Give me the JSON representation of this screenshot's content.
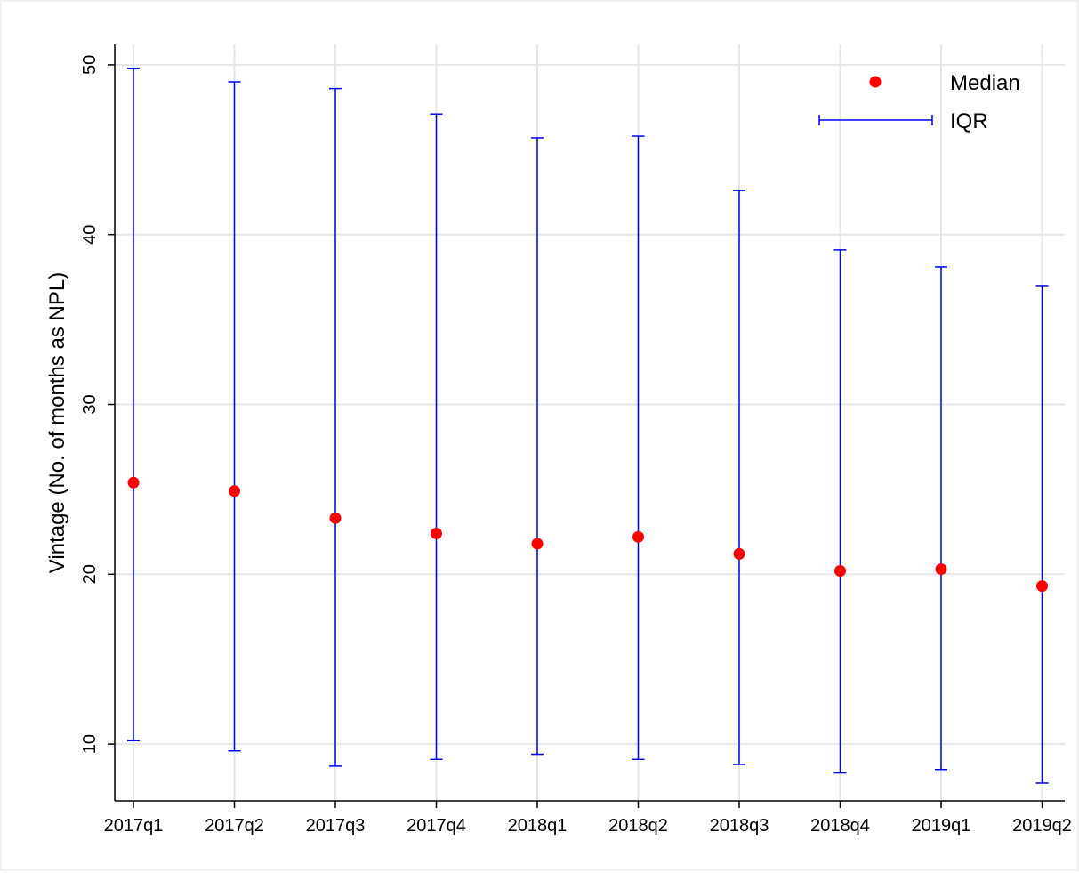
{
  "chart_data": {
    "type": "scatter",
    "title": "",
    "xlabel": "",
    "ylabel": "Vintage (No. of months as NPL)",
    "categories": [
      "2017q1",
      "2017q2",
      "2017q3",
      "2017q4",
      "2018q1",
      "2018q2",
      "2018q3",
      "2018q4",
      "2019q1",
      "2019q2"
    ],
    "series": [
      {
        "name": "Median",
        "values": [
          25.4,
          24.9,
          23.3,
          22.4,
          21.8,
          22.2,
          21.2,
          20.2,
          20.3,
          19.3
        ]
      },
      {
        "name": "IQR",
        "lower": [
          10.2,
          9.6,
          8.7,
          9.1,
          9.4,
          9.1,
          8.8,
          8.3,
          8.5,
          7.7
        ],
        "upper": [
          49.8,
          49.0,
          48.6,
          47.1,
          45.7,
          45.8,
          42.6,
          39.1,
          38.1,
          37.0
        ]
      }
    ],
    "yticks": [
      10,
      20,
      30,
      40,
      50
    ],
    "ylim": [
      6.7,
      51.3
    ],
    "grid": true,
    "legend_position": "top-right",
    "colors": {
      "median": "#ff0000",
      "iqr": "#0000ff",
      "grid": "#e6e6e6",
      "axis": "#000000"
    }
  }
}
